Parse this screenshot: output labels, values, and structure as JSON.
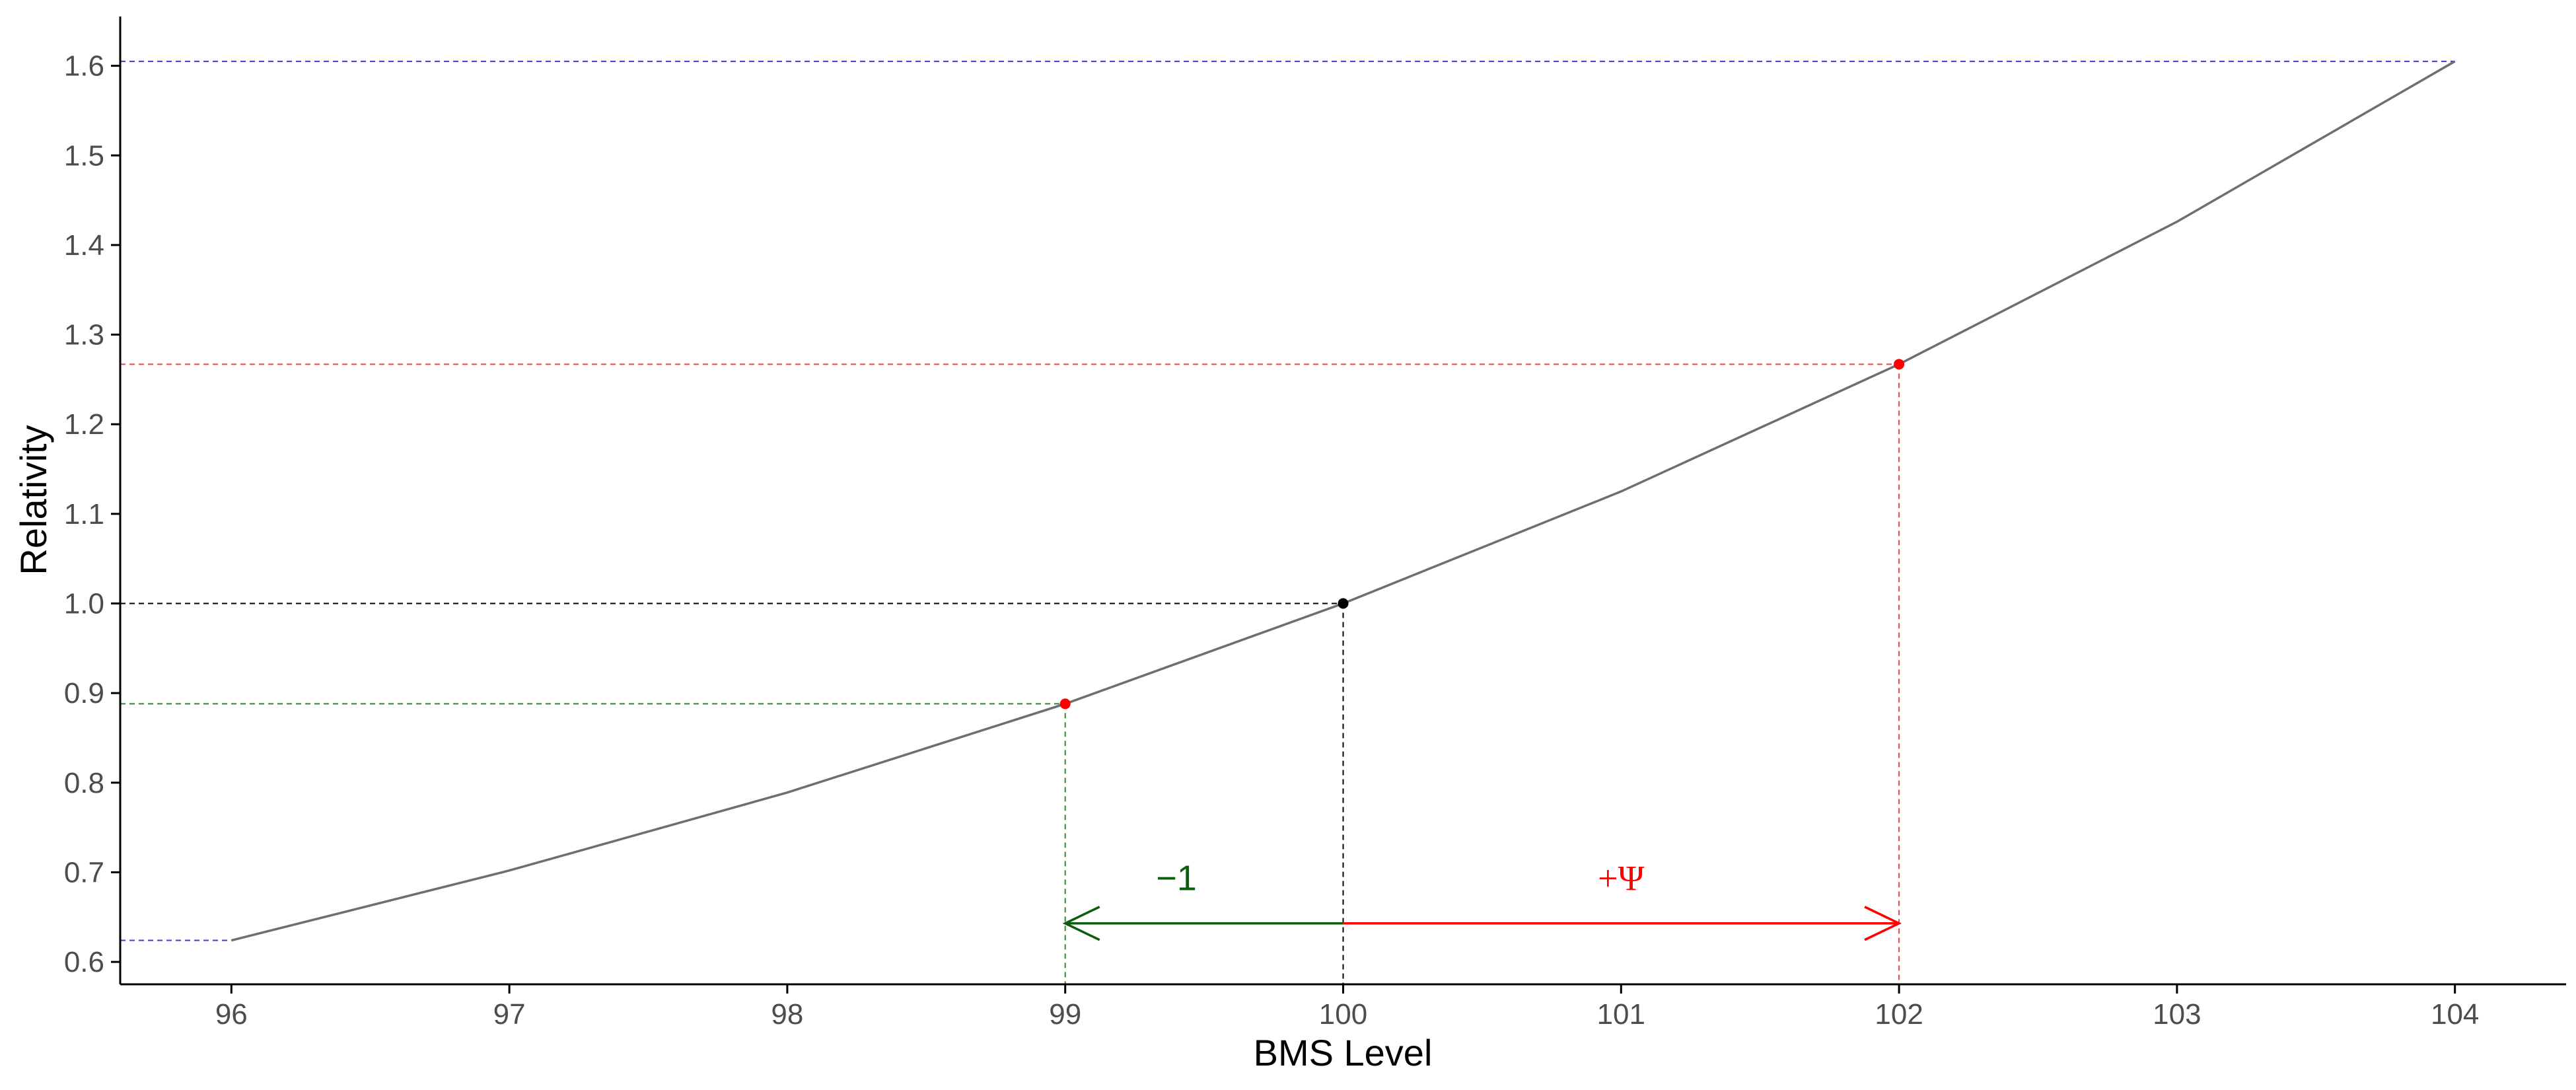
{
  "chart_data": {
    "type": "line",
    "xlabel": "BMS Level",
    "ylabel": "Relativity",
    "xlim": [
      95.6,
      104.4
    ],
    "ylim": [
      0.575,
      1.655
    ],
    "x_ticks": [
      96,
      97,
      98,
      99,
      100,
      101,
      102,
      103,
      104
    ],
    "x_tick_labels": [
      "96",
      "97",
      "98",
      "99",
      "100",
      "101",
      "102",
      "103",
      "104"
    ],
    "y_ticks": [
      0.6,
      0.7,
      0.8,
      0.9,
      1.0,
      1.1,
      1.2,
      1.3,
      1.4,
      1.5,
      1.6
    ],
    "y_tick_labels": [
      "0.6",
      "0.7",
      "0.8",
      "0.9",
      "1.0",
      "1.1",
      "1.2",
      "1.3",
      "1.4",
      "1.5",
      "1.6"
    ],
    "grid": false,
    "series": [
      {
        "x": [
          96,
          97,
          98,
          99,
          100,
          101,
          102,
          103,
          104
        ],
        "y": [
          0.624,
          0.702,
          0.789,
          0.888,
          1.0,
          1.125,
          1.267,
          1.426,
          1.605
        ],
        "color": "#6e6e6e"
      }
    ],
    "points": [
      {
        "x": 99,
        "y": 0.888,
        "color": "#ff0000"
      },
      {
        "x": 100,
        "y": 1.0,
        "color": "#000000"
      },
      {
        "x": 102,
        "y": 1.267,
        "color": "#ff0000"
      }
    ],
    "reference_lines": [
      {
        "x": 104,
        "y": 1.605,
        "color": "#3b3bd6"
      },
      {
        "x": 102,
        "y": 1.267,
        "color": "#e8474a"
      },
      {
        "x": 100,
        "y": 1.0,
        "color": "#000000"
      },
      {
        "x": 99,
        "y": 0.888,
        "color": "#2f8a2f"
      },
      {
        "x": 96,
        "y": 0.624,
        "color": "#3b3bd6"
      }
    ],
    "arrows": [
      {
        "from": 100,
        "to": 99,
        "y": 0.643,
        "label": "−1",
        "label_x": 99.4,
        "label_y": 0.68,
        "color": "#0b5e0b"
      },
      {
        "from": 100,
        "to": 102,
        "y": 0.643,
        "label": "+Ψ",
        "label_x": 101.0,
        "label_y": 0.68,
        "color": "#ff0000"
      }
    ]
  }
}
